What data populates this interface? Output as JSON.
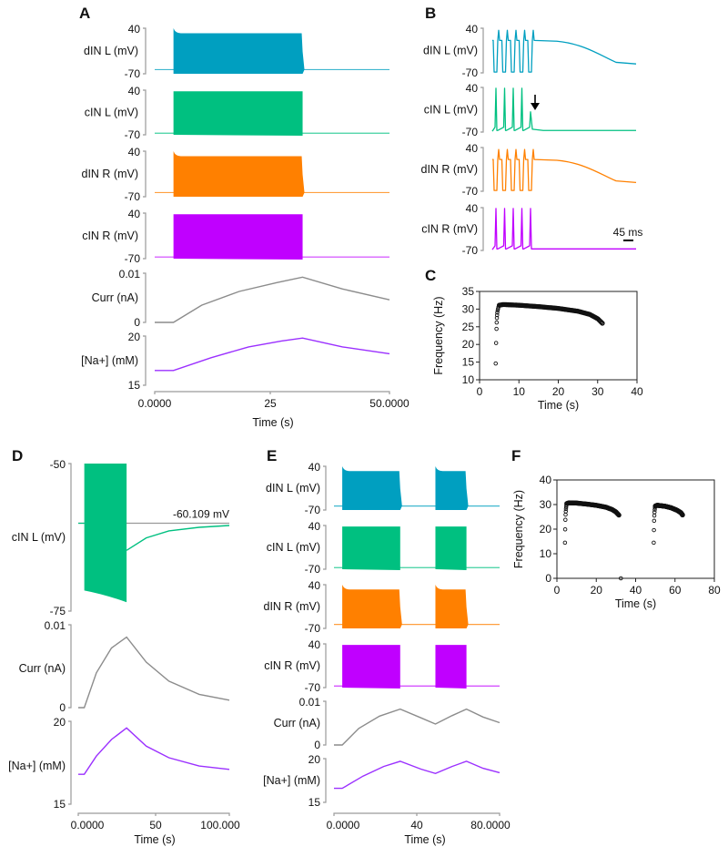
{
  "colors": {
    "dIN_L": "#009fc0",
    "cIN_L": "#00c080",
    "dIN_R": "#ff8000",
    "cIN_R": "#c000ff",
    "curr": "#8c8c8c",
    "na": "#9b30ff",
    "axis": "#9a9a9a",
    "scatter": "#111111"
  },
  "chart_data": [
    {
      "panel": "A",
      "type": "line",
      "xlabel": "Time (s)",
      "xlim": [
        0,
        50
      ],
      "xticks": [
        "0.0000",
        "25",
        "50.0000"
      ],
      "traces": [
        {
          "name": "dIN L (mV)",
          "ylim": [
            -70,
            40
          ],
          "yticks": [
            "40",
            "-70"
          ],
          "color_key": "dIN_L",
          "burst": [
            [
              4,
              31.5
            ]
          ],
          "rest": -60,
          "spike_top_initial": 40,
          "spike_top": 28,
          "spike_bottom": -70
        },
        {
          "name": "cIN L (mV)",
          "ylim": [
            -70,
            40
          ],
          "yticks": [
            "40",
            "-70"
          ],
          "color_key": "cIN_L",
          "burst": [
            [
              4,
              31.5
            ]
          ],
          "rest": -66,
          "spike_top": 35,
          "spike_bottom": -70
        },
        {
          "name": "dIN R (mV)",
          "ylim": [
            -70,
            40
          ],
          "yticks": [
            "40",
            "-70"
          ],
          "color_key": "dIN_R",
          "burst": [
            [
              4,
              31.5
            ]
          ],
          "rest": -60,
          "spike_top_initial": 40,
          "spike_top": 28,
          "spike_bottom": -70
        },
        {
          "name": "cIN R (mV)",
          "ylim": [
            -70,
            40
          ],
          "yticks": [
            "40",
            "-70"
          ],
          "color_key": "cIN_R",
          "burst": [
            [
              4,
              31.5
            ]
          ],
          "rest": -66,
          "spike_top": 35,
          "spike_bottom": -70
        },
        {
          "name": "Curr (nA)",
          "ylim": [
            0,
            0.01
          ],
          "yticks": [
            "0.01",
            "0"
          ],
          "color_key": "curr",
          "points": [
            [
              0,
              0
            ],
            [
              4,
              0
            ],
            [
              10,
              0.0035
            ],
            [
              18,
              0.0063
            ],
            [
              26,
              0.0081
            ],
            [
              31.5,
              0.0092
            ],
            [
              40,
              0.0068
            ],
            [
              50,
              0.0046
            ]
          ]
        },
        {
          "name": "[Na+] (mM)",
          "ylim": [
            15,
            20
          ],
          "yticks": [
            "20",
            "15"
          ],
          "color_key": "na",
          "points": [
            [
              0,
              16.5
            ],
            [
              4,
              16.5
            ],
            [
              12,
              17.8
            ],
            [
              20,
              18.9
            ],
            [
              27,
              19.5
            ],
            [
              31.5,
              19.8
            ],
            [
              40,
              18.9
            ],
            [
              50,
              18.2
            ]
          ]
        }
      ]
    },
    {
      "panel": "B",
      "type": "line",
      "scale_bar": "45 ms",
      "annotation": "arrow marking last cIN L spike",
      "traces": [
        {
          "name": "dIN L (mV)",
          "ylim": [
            -70,
            40
          ],
          "yticks": [
            "40",
            "-70"
          ],
          "color_key": "dIN_L",
          "spikes": 5,
          "plateau": 10,
          "end_level": -48
        },
        {
          "name": "cIN L (mV)",
          "ylim": [
            -70,
            40
          ],
          "yticks": [
            "40",
            "-70"
          ],
          "color_key": "cIN_L",
          "spikes": 4,
          "failed_spike_peak": -20,
          "rest": -66
        },
        {
          "name": "dIN R (mV)",
          "ylim": [
            -70,
            40
          ],
          "yticks": [
            "40",
            "-70"
          ],
          "color_key": "dIN_R",
          "spikes": 5,
          "plateau": 10,
          "end_level": -48
        },
        {
          "name": "cIN R (mV)",
          "ylim": [
            -70,
            40
          ],
          "yticks": [
            "40",
            "-70"
          ],
          "color_key": "cIN_R",
          "spikes": 5,
          "rest": -66
        }
      ]
    },
    {
      "panel": "C",
      "type": "scatter",
      "xlabel": "Time (s)",
      "ylabel": "Frequency (Hz)",
      "xlim": [
        0,
        40
      ],
      "ylim": [
        10,
        35
      ],
      "xticks": [
        "0",
        "10",
        "20",
        "30",
        "40"
      ],
      "yticks": [
        "10",
        "15",
        "20",
        "25",
        "30",
        "35"
      ],
      "segments": [
        {
          "onset_points": [
            [
              4.1,
              14.6
            ],
            [
              4.2,
              20.4
            ],
            [
              4.3,
              24.4
            ],
            [
              4.35,
              26.2
            ],
            [
              4.4,
              27.5
            ],
            [
              4.45,
              28.3
            ],
            [
              4.5,
              29.0
            ],
            [
              4.6,
              29.6
            ],
            [
              4.7,
              30.1
            ],
            [
              4.8,
              30.6
            ]
          ],
          "curve": [
            [
              5,
              31.1
            ],
            [
              6,
              31.3
            ],
            [
              10,
              31.1
            ],
            [
              15,
              30.7
            ],
            [
              20,
              30.2
            ],
            [
              25,
              29.4
            ],
            [
              28,
              28.5
            ],
            [
              30,
              27.3
            ],
            [
              31.2,
              26.0
            ]
          ]
        }
      ]
    },
    {
      "panel": "D",
      "type": "line",
      "xlabel": "Time (s)",
      "xlim": [
        0,
        100
      ],
      "xticks": [
        "0.0000",
        "50",
        "100.000"
      ],
      "annotation": "-60.109 mV",
      "traces": [
        {
          "name": "cIN L (mV)",
          "ylim": [
            -75,
            -50
          ],
          "yticks": [
            "-50",
            "-75"
          ],
          "color_key": "cIN_L",
          "reference_level": -60.109,
          "burst": [
            [
              4,
              32
            ]
          ],
          "points": [
            [
              32,
              -64.7
            ],
            [
              45,
              -62.6
            ],
            [
              60,
              -61.4
            ],
            [
              80,
              -60.8
            ],
            [
              100,
              -60.5
            ]
          ]
        },
        {
          "name": "Curr (nA)",
          "ylim": [
            0,
            0.01
          ],
          "yticks": [
            "0.01",
            "0"
          ],
          "color_key": "curr",
          "points": [
            [
              0,
              0
            ],
            [
              4,
              0
            ],
            [
              12,
              0.0042
            ],
            [
              22,
              0.0072
            ],
            [
              32,
              0.0085
            ],
            [
              45,
              0.0055
            ],
            [
              60,
              0.0032
            ],
            [
              80,
              0.0016
            ],
            [
              100,
              0.0009
            ]
          ]
        },
        {
          "name": "[Na+] (mM)",
          "ylim": [
            15,
            20
          ],
          "yticks": [
            "20",
            "15"
          ],
          "color_key": "na",
          "points": [
            [
              0,
              16.8
            ],
            [
              4,
              16.8
            ],
            [
              12,
              17.9
            ],
            [
              22,
              18.9
            ],
            [
              32,
              19.6
            ],
            [
              45,
              18.5
            ],
            [
              60,
              17.8
            ],
            [
              80,
              17.3
            ],
            [
              100,
              17.1
            ]
          ]
        }
      ]
    },
    {
      "panel": "E",
      "type": "line",
      "xlabel": "Time (s)",
      "xlim": [
        0,
        80
      ],
      "xticks": [
        "0.0000",
        "40",
        "80.0000"
      ],
      "traces": [
        {
          "name": "dIN L (mV)",
          "ylim": [
            -70,
            40
          ],
          "yticks": [
            "40",
            "-70"
          ],
          "color_key": "dIN_L",
          "burst": [
            [
              4,
              32
            ],
            [
              49,
              64
            ]
          ],
          "rest": -60,
          "spike_top_initial": 40,
          "spike_top": 28,
          "spike_bottom": -70
        },
        {
          "name": "cIN L (mV)",
          "ylim": [
            -70,
            40
          ],
          "yticks": [
            "40",
            "-70"
          ],
          "color_key": "cIN_L",
          "burst": [
            [
              4,
              32
            ],
            [
              49,
              64
            ]
          ],
          "rest": -66,
          "spike_top": 35,
          "spike_bottom": -70
        },
        {
          "name": "dIN R (mV)",
          "ylim": [
            -70,
            40
          ],
          "yticks": [
            "40",
            "-70"
          ],
          "color_key": "dIN_R",
          "burst": [
            [
              4,
              32
            ],
            [
              49,
              64
            ]
          ],
          "rest": -60,
          "spike_top_initial": 40,
          "spike_top": 28,
          "spike_bottom": -70
        },
        {
          "name": "cIN R (mV)",
          "ylim": [
            -70,
            40
          ],
          "yticks": [
            "40",
            "-70"
          ],
          "color_key": "cIN_R",
          "burst": [
            [
              4,
              32
            ],
            [
              49,
              64
            ]
          ],
          "rest": -66,
          "spike_top": 35,
          "spike_bottom": -70
        },
        {
          "name": "Curr (nA)",
          "ylim": [
            0,
            0.01
          ],
          "yticks": [
            "0.01",
            "0"
          ],
          "color_key": "curr",
          "points": [
            [
              0,
              0
            ],
            [
              4,
              0
            ],
            [
              12,
              0.0038
            ],
            [
              22,
              0.0066
            ],
            [
              32,
              0.0082
            ],
            [
              42,
              0.0062
            ],
            [
              49,
              0.0048
            ],
            [
              57,
              0.0067
            ],
            [
              64,
              0.0082
            ],
            [
              72,
              0.0064
            ],
            [
              80,
              0.0051
            ]
          ]
        },
        {
          "name": "[Na+] (mM)",
          "ylim": [
            15,
            20
          ],
          "yticks": [
            "20",
            "15"
          ],
          "color_key": "na",
          "points": [
            [
              0,
              16.6
            ],
            [
              4,
              16.6
            ],
            [
              14,
              18.0
            ],
            [
              24,
              19.1
            ],
            [
              32,
              19.7
            ],
            [
              42,
              18.8
            ],
            [
              49,
              18.3
            ],
            [
              57,
              19.1
            ],
            [
              64,
              19.7
            ],
            [
              72,
              18.9
            ],
            [
              80,
              18.4
            ]
          ]
        }
      ]
    },
    {
      "panel": "F",
      "type": "scatter",
      "xlabel": "Time (s)",
      "ylabel": "Frequency (Hz)",
      "xlim": [
        0,
        80
      ],
      "ylim": [
        0,
        40
      ],
      "xticks": [
        "0",
        "20",
        "40",
        "60",
        "80"
      ],
      "yticks": [
        "0",
        "10",
        "20",
        "30",
        "40"
      ],
      "segments": [
        {
          "onset_points": [
            [
              4.1,
              14.5
            ],
            [
              4.2,
              19.9
            ],
            [
              4.3,
              23.8
            ],
            [
              4.4,
              25.9
            ],
            [
              4.5,
              27.2
            ],
            [
              4.6,
              28.2
            ],
            [
              4.7,
              29.0
            ],
            [
              4.8,
              29.7
            ]
          ],
          "curve": [
            [
              5,
              30.4
            ],
            [
              6,
              30.7
            ],
            [
              10,
              30.6
            ],
            [
              15,
              30.2
            ],
            [
              20,
              29.7
            ],
            [
              25,
              28.9
            ],
            [
              28,
              28.0
            ],
            [
              30,
              27.0
            ],
            [
              31.5,
              25.7
            ]
          ]
        },
        {
          "onset_points": [
            [
              32.5,
              0
            ]
          ]
        },
        {
          "onset_points": [
            [
              49.2,
              14.5
            ],
            [
              49.3,
              19.6
            ],
            [
              49.4,
              23.4
            ],
            [
              49.5,
              25.5
            ],
            [
              49.6,
              26.9
            ],
            [
              49.7,
              27.9
            ],
            [
              49.8,
              28.7
            ]
          ],
          "curve": [
            [
              50,
              29.4
            ],
            [
              51,
              29.7
            ],
            [
              55,
              29.3
            ],
            [
              58,
              28.7
            ],
            [
              61,
              27.7
            ],
            [
              63,
              26.7
            ],
            [
              64,
              25.6
            ]
          ]
        }
      ]
    }
  ]
}
